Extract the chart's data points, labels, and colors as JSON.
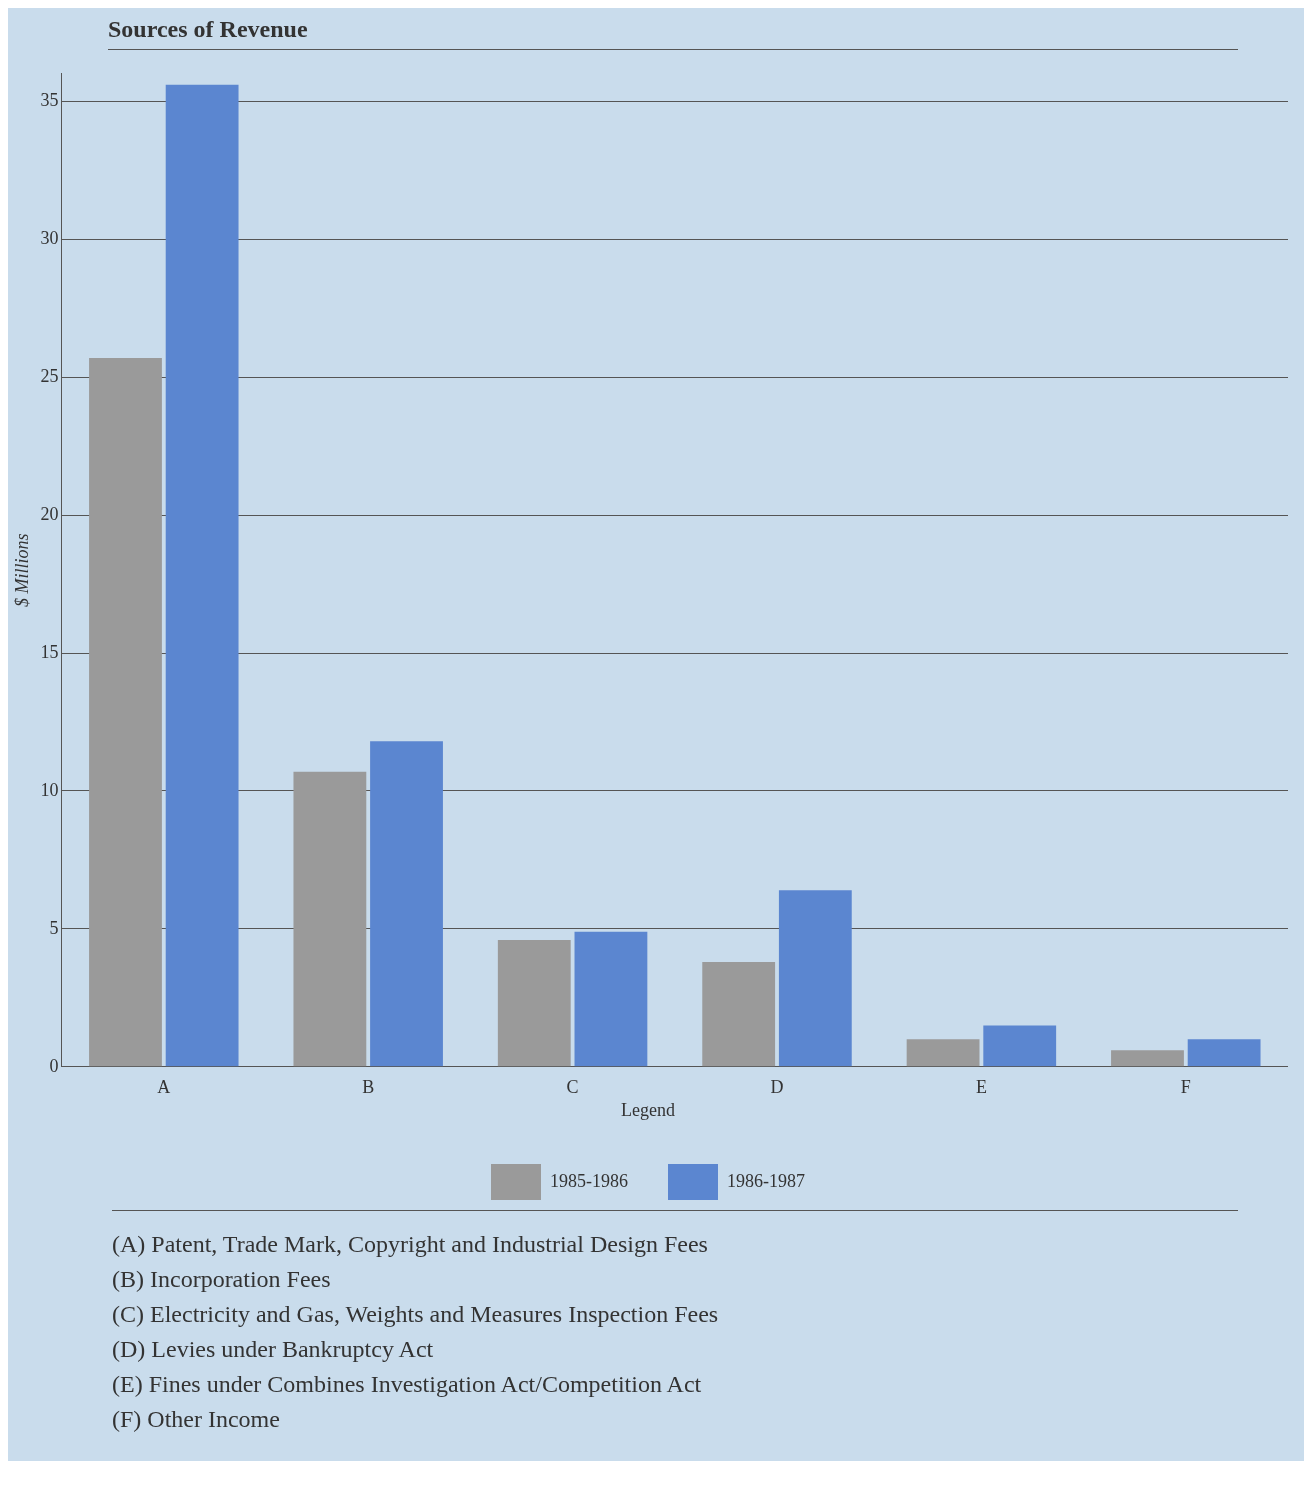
{
  "chart_data": {
    "type": "bar",
    "title": "Sources of Revenue",
    "ylabel": "$ Millions",
    "categories": [
      "A",
      "B",
      "C",
      "D",
      "E",
      "F"
    ],
    "series": [
      {
        "name": "1985-1986",
        "color": "#9a9a9a",
        "values": [
          25.7,
          10.7,
          4.6,
          3.8,
          1.0,
          0.6
        ]
      },
      {
        "name": "1986-1987",
        "color": "#5b86d0",
        "values": [
          35.6,
          11.8,
          4.9,
          6.4,
          1.5,
          1.0
        ]
      }
    ],
    "ylim": [
      0,
      36
    ],
    "yticks": [
      0,
      5,
      10,
      15,
      20,
      25,
      30,
      35
    ],
    "grid": "y",
    "legend": "bottom",
    "legend_title": "Legend",
    "annotations": [
      "(A) Patent, Trade Mark, Copyright and Industrial Design Fees",
      "(B) Incorporation Fees",
      "(C) Electricity and Gas, Weights and Measures Inspection Fees",
      "(D) Levies under Bankruptcy Act",
      "(E) Fines under Combines Investigation Act/Competition Act",
      "(F) Other Income"
    ]
  }
}
